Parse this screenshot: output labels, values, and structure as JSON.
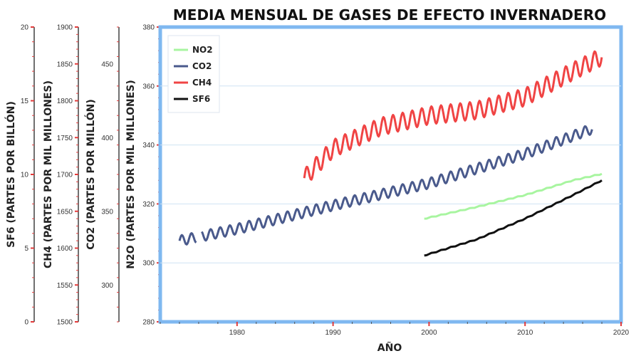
{
  "chart_data": {
    "type": "line",
    "title": "MEDIA MENSUAL DE GASES DE EFECTO INVERNADERO",
    "xlabel": "AÑO",
    "x_range": [
      1972,
      2020
    ],
    "x_ticks": [
      1980,
      1990,
      2000,
      2010,
      2020
    ],
    "grid": "horizontal",
    "legend_position": "top-left",
    "frame_color": "#7fb8f0",
    "axes": {
      "sf6": {
        "label": "SF6 (PARTES POR BILLÓN)",
        "range": [
          0,
          20
        ],
        "ticks": [
          0,
          5,
          10,
          15,
          20
        ]
      },
      "ch4": {
        "label": "CH4 (PARTES POR MIL MILLONES)",
        "range": [
          1500,
          1900
        ],
        "ticks": [
          1500,
          1550,
          1600,
          1650,
          1700,
          1750,
          1800,
          1850,
          1900
        ]
      },
      "co2": {
        "label": "CO2 (PARTES POR MILLÓN)",
        "range": [
          275,
          475
        ],
        "ticks": [
          300,
          350,
          400,
          450
        ]
      },
      "n2o": {
        "label": "N2O (PARTES POR MIL MILLONES)",
        "range": [
          280,
          380
        ],
        "ticks": [
          280,
          300,
          320,
          340,
          360,
          380
        ]
      }
    },
    "series": [
      {
        "name": "NO2",
        "axis": "n2o",
        "color": "#a8f5a0",
        "start": 1999.5,
        "end": 2018.0,
        "step": 0.25,
        "seasonal_amp": 0.15,
        "anchors": [
          [
            1999.5,
            315.0
          ],
          [
            2005,
            319.0
          ],
          [
            2010,
            323.0
          ],
          [
            2015,
            328.0
          ],
          [
            2018,
            330.2
          ]
        ]
      },
      {
        "name": "CO2",
        "axis": "co2",
        "color": "#4a5a8c",
        "start": 1974.0,
        "end": 2017.0,
        "step": 0.0833,
        "seasonal_amp": 3.5,
        "gap": [
          1975.8,
          1976.3
        ],
        "anchors": [
          [
            1974,
            330.0
          ],
          [
            1980,
            338.0
          ],
          [
            1990,
            354.0
          ],
          [
            2000,
            369.0
          ],
          [
            2010,
            389.0
          ],
          [
            2017,
            406.0
          ]
        ]
      },
      {
        "name": "CH4",
        "axis": "ch4",
        "color": "#f04444",
        "start": 1987.0,
        "end": 2018.0,
        "step": 0.0833,
        "seasonal_amp": 12,
        "anchors": [
          [
            1987,
            1695.0
          ],
          [
            1990,
            1735.0
          ],
          [
            1995,
            1765.0
          ],
          [
            2000,
            1780.0
          ],
          [
            2005,
            1787.0
          ],
          [
            2010,
            1805.0
          ],
          [
            2015,
            1840.0
          ],
          [
            2018,
            1860.0
          ]
        ]
      },
      {
        "name": "SF6",
        "axis": "sf6",
        "color": "#111111",
        "start": 1999.5,
        "end": 2018.0,
        "step": 0.25,
        "seasonal_amp": 0.03,
        "anchors": [
          [
            1999.5,
            4.5
          ],
          [
            2005,
            5.6
          ],
          [
            2010,
            7.0
          ],
          [
            2015,
            8.6
          ],
          [
            2018,
            9.6
          ]
        ]
      }
    ]
  }
}
